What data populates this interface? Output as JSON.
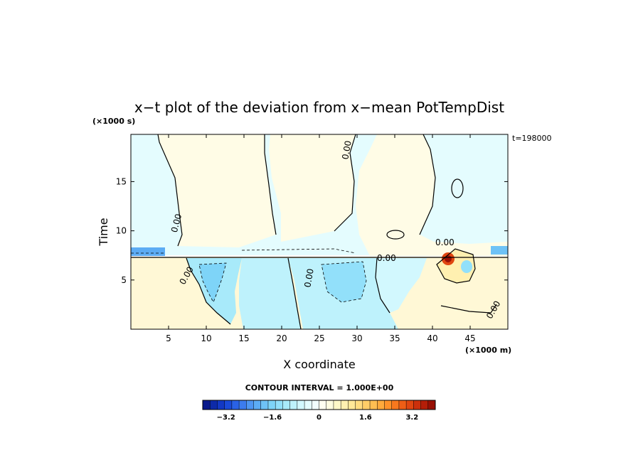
{
  "chart_data": {
    "type": "heatmap",
    "title": "x−t plot of the deviation from x−mean PotTempDist",
    "xlabel": "X coordinate",
    "ylabel": "Time",
    "x_unit": "(×1000 m)",
    "y_unit": "(×1000 s)",
    "time_label": "t=198000",
    "xlim": [
      0,
      50
    ],
    "ylim": [
      0,
      19.8
    ],
    "x_ticks": [
      5,
      10,
      15,
      20,
      25,
      30,
      35,
      40,
      45
    ],
    "y_ticks": [
      5,
      10,
      15
    ],
    "grid": false,
    "contour_interval_text": "CONTOUR INTERVAL = 1.000E+00",
    "contour_labels": [
      "0.00",
      "0.00",
      "0.00",
      "0.00",
      "0.00",
      "0.00",
      "0.00"
    ],
    "colorbar": {
      "vmin": -4.0,
      "vmax": 4.0,
      "ticks": [
        "−3.2",
        "−1.6",
        "0",
        "1.6",
        "3.2"
      ],
      "tick_values": [
        -3.2,
        -1.6,
        0,
        1.6,
        3.2
      ],
      "colors": [
        "#0a1a8c",
        "#0d2aa8",
        "#1238c4",
        "#1a4ad8",
        "#2a62e6",
        "#3c7cee",
        "#4e96f2",
        "#5cacf4",
        "#6ec2f6",
        "#7ed4f8",
        "#92e0fa",
        "#a8eafa",
        "#bef2fc",
        "#d2f8fe",
        "#e4fcfe",
        "#f2fefe",
        "#fffef0",
        "#fffce0",
        "#fff8c8",
        "#fff0b0",
        "#ffe898",
        "#ffdc80",
        "#ffce68",
        "#ffbe52",
        "#ffaa3c",
        "#ff922a",
        "#f8781e",
        "#ee5e16",
        "#e04610",
        "#cc300c",
        "#b41e08",
        "#981004"
      ]
    },
    "regions": [
      {
        "name": "cool-upper-left",
        "value": -0.3
      },
      {
        "name": "warm-upper-band-1",
        "value": 0.3
      },
      {
        "name": "warm-upper-band-2",
        "value": 0.3
      },
      {
        "name": "warm-upper-band-3",
        "value": 0.3
      },
      {
        "name": "cool-lower-left",
        "value": -1.0
      },
      {
        "name": "cool-lower-middle",
        "value": -0.8
      },
      {
        "name": "warm-lower",
        "value": 0.6
      },
      {
        "name": "hot-spot",
        "value": 3.5
      }
    ]
  }
}
